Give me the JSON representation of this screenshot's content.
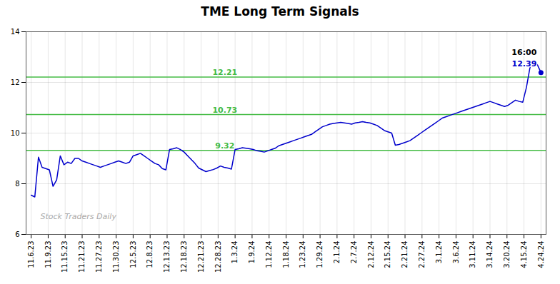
{
  "chart_data": {
    "type": "line",
    "title": "TME Long Term Signals",
    "x": [
      0,
      0.214286,
      0.428571,
      0.642857,
      0.857143,
      1.071429,
      1.285714,
      1.5,
      1.714286,
      1.928571,
      2.142857,
      2.357143,
      2.571429,
      2.785714,
      3,
      3.214286,
      3.428571,
      3.642857,
      3.857143,
      4.071429,
      4.285714,
      4.5,
      4.714286,
      4.928571,
      5.142857,
      5.357143,
      5.571429,
      5.785714,
      6,
      6.214286,
      6.428571,
      6.642857,
      6.857143,
      7.071429,
      7.285714,
      7.5,
      7.714286,
      7.928571,
      8.142857,
      8.357143,
      8.571429,
      8.785714,
      9,
      9.214286,
      9.428571,
      9.642857,
      9.857143,
      10.071429,
      10.285714,
      10.5,
      10.714286,
      10.928571,
      11.142857,
      11.357143,
      11.571429,
      11.785714,
      12,
      12.214286,
      12.428571,
      12.642857,
      12.857143,
      13.071429,
      13.285714,
      13.5,
      13.714286,
      13.928571,
      14.142857,
      14.357143,
      14.571429,
      14.785714,
      15,
      15.214286,
      15.428571,
      15.642857,
      15.857143,
      16.071429,
      16.285714,
      16.5,
      16.714286,
      16.928571,
      17.142857,
      17.357143,
      17.571429,
      17.785714,
      18,
      18.214286,
      18.428571,
      18.642857,
      18.857143,
      19.071429,
      19.285714,
      19.5,
      19.714286,
      19.928571,
      20.142857,
      20.357143,
      20.571429,
      20.785714,
      21,
      21.214286,
      21.428571,
      21.642857,
      21.857143,
      22.071429,
      22.285714,
      22.5,
      22.714286,
      22.928571,
      23.142857,
      23.357143,
      23.571429,
      23.785714,
      24,
      24.214286,
      24.428571,
      24.642857,
      24.857143,
      25.071429,
      25.285714,
      25.5,
      25.714286,
      25.928571,
      26.142857,
      26.357143,
      26.571429,
      26.785714,
      27,
      27.214286,
      27.428571,
      27.642857,
      27.857143,
      28.071429,
      28.285714,
      28.5,
      28.714286,
      28.928571,
      29.142857,
      29.357143,
      29.571429,
      29.785714,
      30
    ],
    "values": [
      7.55,
      7.48,
      9.05,
      8.65,
      8.6,
      8.55,
      7.9,
      8.15,
      9.1,
      8.75,
      8.85,
      8.8,
      9.0,
      9.0,
      8.9,
      8.85,
      8.8,
      8.75,
      8.7,
      8.65,
      8.7,
      8.75,
      8.8,
      8.85,
      8.9,
      8.85,
      8.8,
      8.85,
      9.1,
      9.15,
      9.2,
      9.1,
      9.0,
      8.9,
      8.8,
      8.75,
      8.6,
      8.55,
      9.35,
      9.38,
      9.42,
      9.35,
      9.25,
      9.1,
      8.95,
      8.8,
      8.62,
      8.55,
      8.48,
      8.52,
      8.56,
      8.62,
      8.7,
      8.65,
      8.62,
      8.58,
      9.35,
      9.38,
      9.42,
      9.4,
      9.38,
      9.35,
      9.3,
      9.28,
      9.25,
      9.3,
      9.35,
      9.4,
      9.5,
      9.55,
      9.6,
      9.65,
      9.7,
      9.75,
      9.8,
      9.85,
      9.9,
      9.95,
      10.05,
      10.15,
      10.25,
      10.3,
      10.35,
      10.38,
      10.4,
      10.42,
      10.4,
      10.38,
      10.35,
      10.4,
      10.42,
      10.45,
      10.42,
      10.4,
      10.35,
      10.3,
      10.2,
      10.1,
      10.05,
      10.0,
      9.52,
      9.55,
      9.6,
      9.65,
      9.7,
      9.8,
      9.9,
      10.0,
      10.1,
      10.2,
      10.3,
      10.4,
      10.5,
      10.6,
      10.65,
      10.7,
      10.75,
      10.8,
      10.85,
      10.9,
      10.95,
      11.0,
      11.05,
      11.1,
      11.15,
      11.2,
      11.25,
      11.2,
      11.15,
      11.1,
      11.05,
      11.1,
      11.2,
      11.3,
      11.25,
      11.22,
      11.8,
      12.6,
      12.8,
      12.7,
      12.39
    ],
    "color": "#0000cc",
    "xlim": [
      -0.3,
      30.3
    ],
    "xticks": [
      {
        "value": 0,
        "label": "11.6.23"
      },
      {
        "value": 1,
        "label": "11.9.23"
      },
      {
        "value": 2,
        "label": "11.15.23"
      },
      {
        "value": 3,
        "label": "11.21.23"
      },
      {
        "value": 4,
        "label": "11.27.23"
      },
      {
        "value": 5,
        "label": "11.30.23"
      },
      {
        "value": 6,
        "label": "12.5.23"
      },
      {
        "value": 7,
        "label": "12.8.23"
      },
      {
        "value": 8,
        "label": "12.13.23"
      },
      {
        "value": 9,
        "label": "12.18.23"
      },
      {
        "value": 10,
        "label": "12.21.23"
      },
      {
        "value": 11,
        "label": "12.28.23"
      },
      {
        "value": 12,
        "label": "1.3.24"
      },
      {
        "value": 13,
        "label": "1.9.24"
      },
      {
        "value": 14,
        "label": "1.12.24"
      },
      {
        "value": 15,
        "label": "1.18.24"
      },
      {
        "value": 16,
        "label": "1.23.24"
      },
      {
        "value": 17,
        "label": "1.29.24"
      },
      {
        "value": 18,
        "label": "2.1.24"
      },
      {
        "value": 19,
        "label": "2.7.24"
      },
      {
        "value": 20,
        "label": "2.12.24"
      },
      {
        "value": 21,
        "label": "2.15.24"
      },
      {
        "value": 22,
        "label": "2.21.24"
      },
      {
        "value": 23,
        "label": "2.27.24"
      },
      {
        "value": 24,
        "label": "3.1.24"
      },
      {
        "value": 25,
        "label": "3.6.24"
      },
      {
        "value": 26,
        "label": "3.11.24"
      },
      {
        "value": 27,
        "label": "3.14.24"
      },
      {
        "value": 28,
        "label": "3.20.24"
      },
      {
        "value": 29,
        "label": "4.15.24"
      },
      {
        "value": 30,
        "label": "4.24.24"
      }
    ],
    "ylim": [
      6,
      14
    ],
    "yticks": [
      6,
      8,
      10,
      12,
      14
    ],
    "grid": true,
    "hlines": [
      {
        "value": 9.32,
        "label": "9.32",
        "color": "#44bb44"
      },
      {
        "value": 10.73,
        "label": "10.73",
        "color": "#44bb44"
      },
      {
        "value": 12.21,
        "label": "12.21",
        "color": "#44bb44"
      }
    ],
    "last_point_labels": [
      {
        "text": "16:00",
        "color": "#000000"
      },
      {
        "text": "12.39",
        "color": "#0000cc"
      }
    ],
    "watermark": {
      "text": "Stock Traders Daily",
      "color": "#aaaaaa"
    }
  }
}
